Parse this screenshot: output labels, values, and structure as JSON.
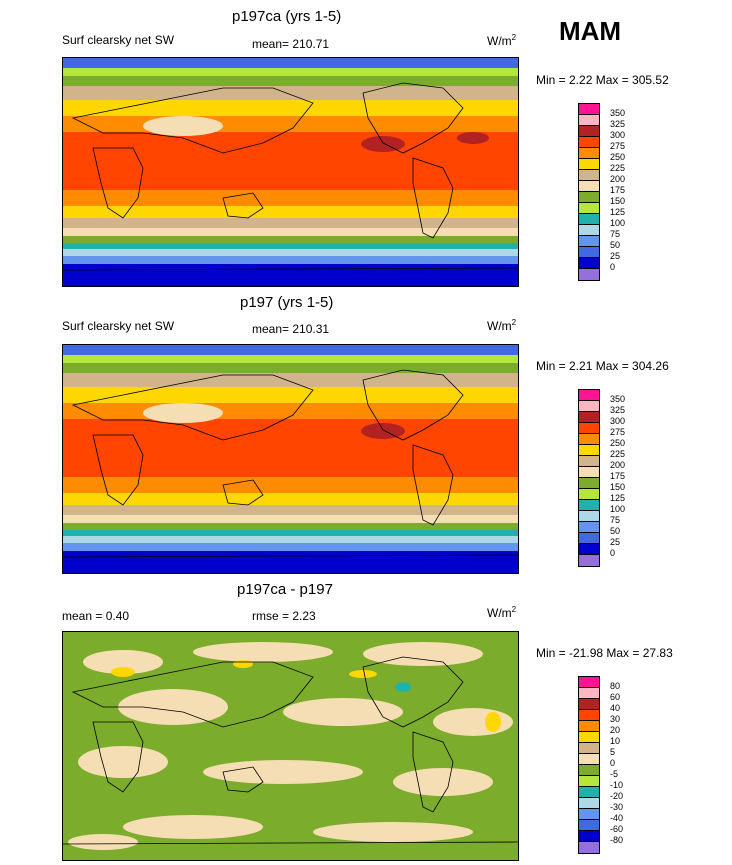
{
  "season": "MAM",
  "panels": [
    {
      "title": "p197ca (yrs 1-5)",
      "left_label": "Surf clearsky net SW",
      "center_label": "mean= 210.71",
      "units": "W/m",
      "units_sup": "2",
      "minmax": "Min =   2.22 Max = 305.52",
      "levels": [
        "350",
        "325",
        "300",
        "275",
        "250",
        "225",
        "200",
        "175",
        "150",
        "125",
        "100",
        "75",
        "50",
        "25",
        "0"
      ]
    },
    {
      "title": "p197 (yrs 1-5)",
      "left_label": "Surf clearsky net SW",
      "center_label": "mean= 210.31",
      "units": "W/m",
      "units_sup": "2",
      "minmax": "Min =   2.21 Max = 304.26",
      "levels": [
        "350",
        "325",
        "300",
        "275",
        "250",
        "225",
        "200",
        "175",
        "150",
        "125",
        "100",
        "75",
        "50",
        "25",
        "0"
      ]
    },
    {
      "title": "p197ca - p197",
      "left_label": "mean =   0.40",
      "center_label": "rmse =   2.23",
      "units": "W/m",
      "units_sup": "2",
      "minmax": "Min = -21.98 Max =  27.83",
      "levels": [
        "80",
        "60",
        "40",
        "30",
        "20",
        "10",
        "5",
        "0",
        "-5",
        "-10",
        "-20",
        "-30",
        "-40",
        "-60",
        "-80"
      ]
    }
  ],
  "colorbar_colors": [
    "#ff1493",
    "#ffb6c1",
    "#b22222",
    "#ff4500",
    "#ff8c00",
    "#ffd700",
    "#d2b48c",
    "#f5deb3",
    "#7cac2c",
    "#b4e63c",
    "#20b2aa",
    "#add8e6",
    "#6495ed",
    "#4169e1",
    "#0000cd",
    "#9370db"
  ]
}
